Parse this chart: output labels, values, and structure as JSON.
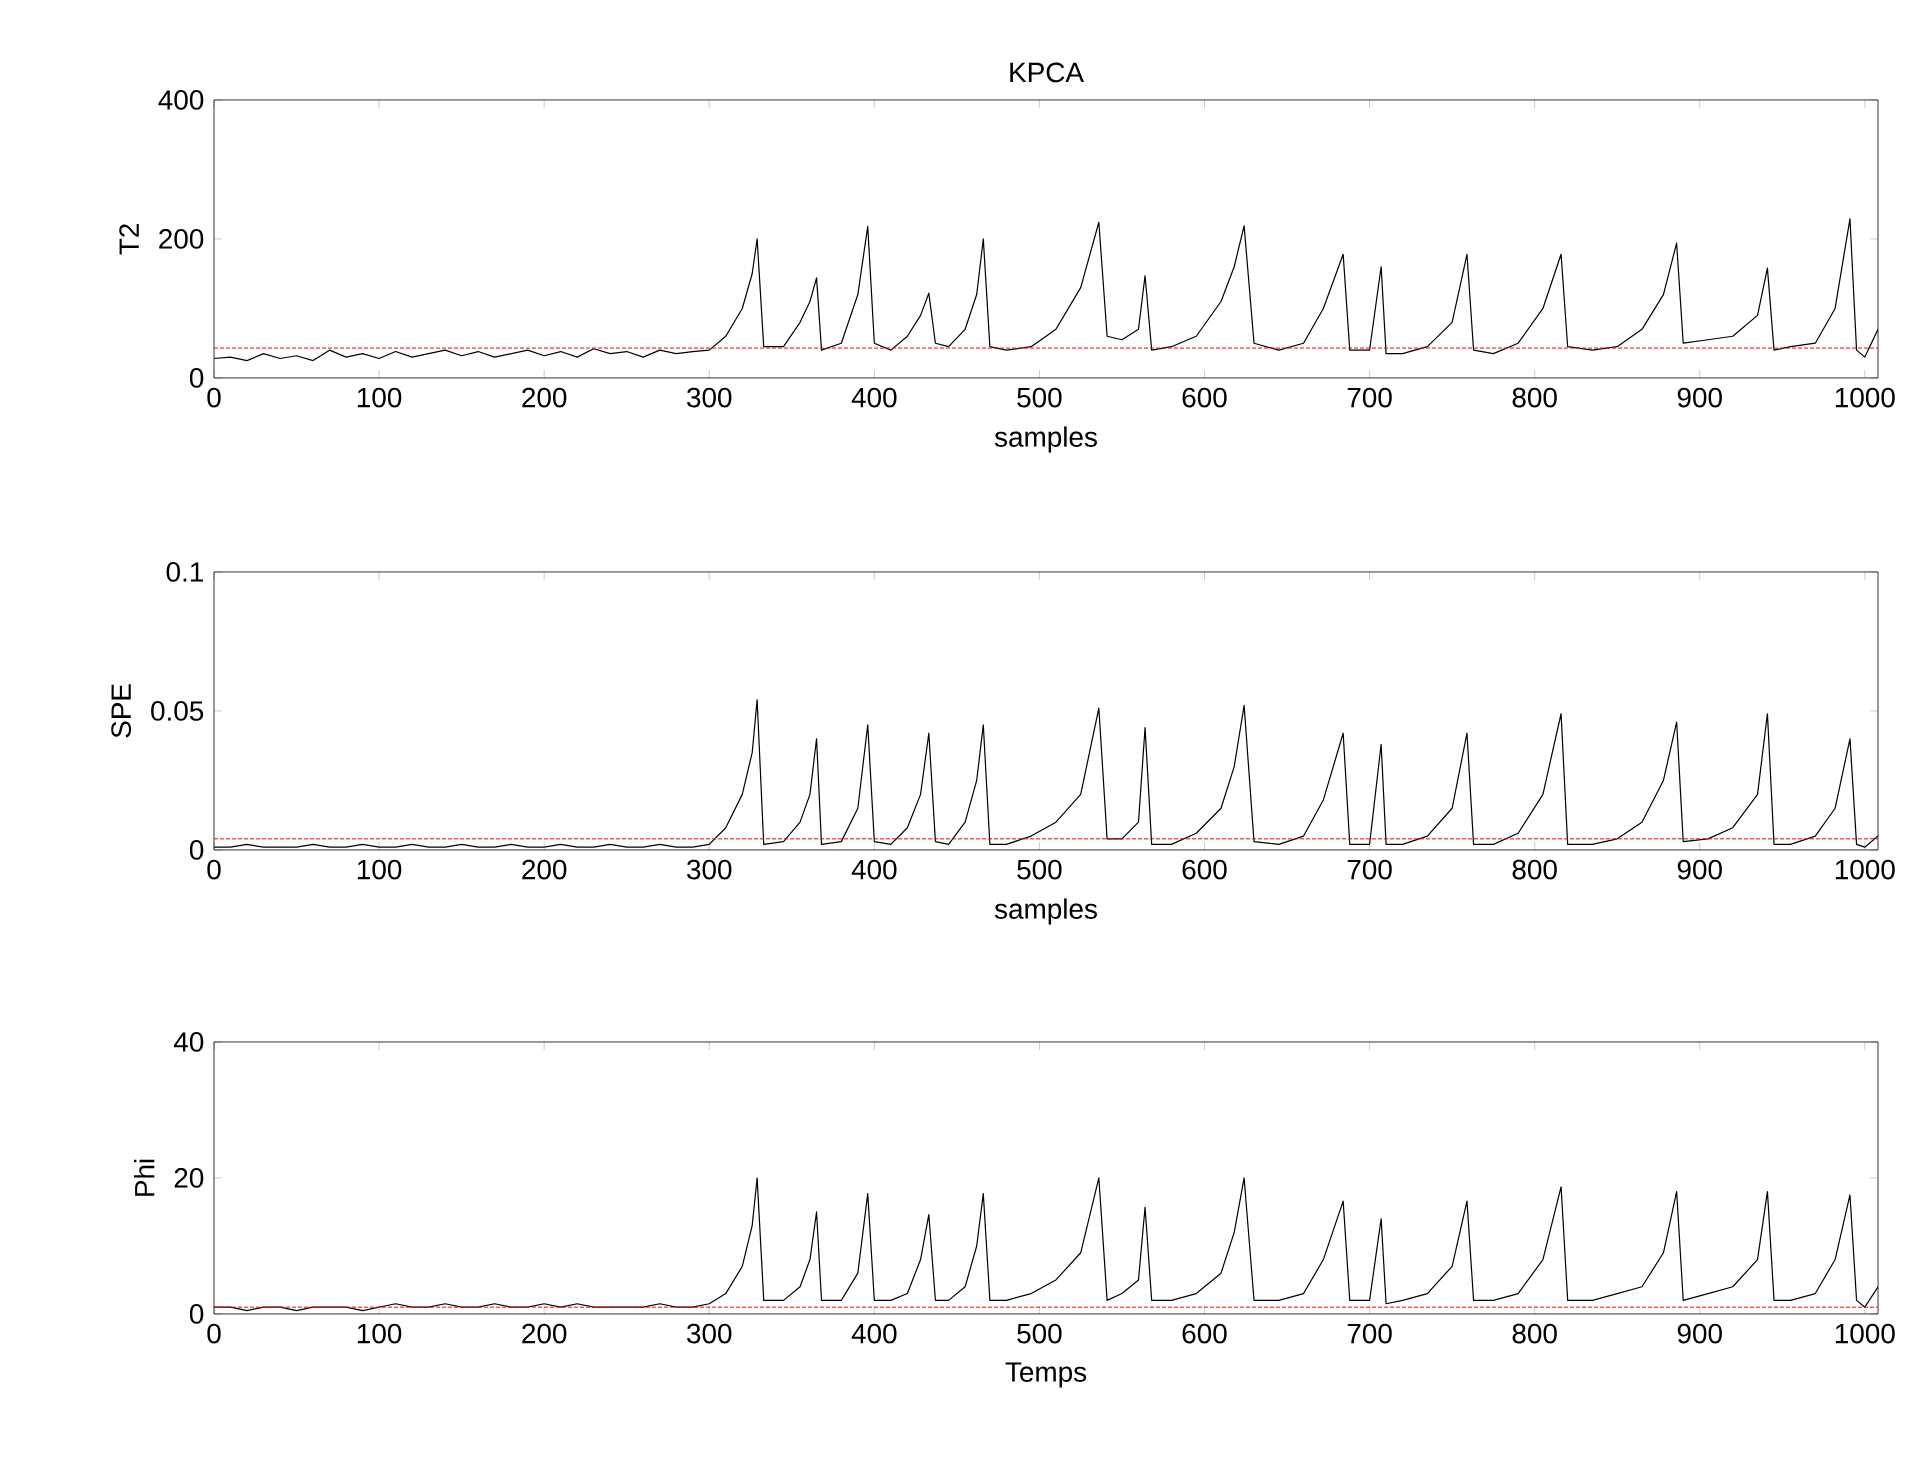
{
  "chart_data": [
    {
      "type": "line",
      "title": "KPCA",
      "xlabel": "samples",
      "ylabel": "T2",
      "xlim": [
        0,
        1008
      ],
      "xticks": [
        0,
        100,
        200,
        300,
        400,
        500,
        600,
        700,
        800,
        900,
        1000
      ],
      "ylim": [
        0,
        400
      ],
      "yticks": [
        0,
        200,
        400
      ],
      "ref_lines": [
        {
          "axis": "y",
          "value": 43,
          "color": "#ff0000",
          "line_style": "dashed"
        }
      ],
      "x": [
        0,
        10,
        20,
        30,
        40,
        50,
        60,
        70,
        80,
        90,
        100,
        110,
        120,
        130,
        140,
        150,
        160,
        170,
        180,
        190,
        200,
        210,
        220,
        230,
        240,
        250,
        260,
        270,
        280,
        290,
        300,
        310,
        320,
        326,
        329,
        333,
        345,
        355,
        361,
        365,
        368,
        380,
        390,
        396,
        400,
        410,
        420,
        428,
        433,
        437,
        445,
        455,
        462,
        466,
        470,
        480,
        495,
        510,
        525,
        536,
        541,
        550,
        560,
        564,
        568,
        580,
        595,
        610,
        618,
        624,
        630,
        645,
        660,
        672,
        684,
        688,
        700,
        707,
        710,
        720,
        735,
        750,
        759,
        763,
        775,
        790,
        805,
        816,
        820,
        835,
        850,
        865,
        878,
        886,
        890,
        905,
        920,
        935,
        941,
        945,
        955,
        970,
        982,
        991,
        995,
        1000,
        1008
      ],
      "series": [
        {
          "color": "#000000",
          "values": [
            28,
            30,
            25,
            35,
            28,
            32,
            25,
            40,
            30,
            35,
            28,
            38,
            30,
            35,
            40,
            32,
            38,
            30,
            35,
            40,
            32,
            38,
            30,
            42,
            35,
            38,
            30,
            40,
            35,
            38,
            40,
            60,
            100,
            150,
            200,
            45,
            45,
            80,
            110,
            144,
            40,
            50,
            120,
            218,
            50,
            40,
            60,
            90,
            122,
            50,
            45,
            70,
            120,
            200,
            45,
            40,
            45,
            70,
            130,
            224,
            60,
            55,
            70,
            147,
            40,
            45,
            60,
            110,
            160,
            219,
            50,
            40,
            50,
            100,
            178,
            40,
            40,
            160,
            35,
            35,
            45,
            80,
            178,
            40,
            35,
            50,
            100,
            178,
            45,
            40,
            45,
            70,
            120,
            194,
            50,
            55,
            60,
            90,
            158,
            40,
            45,
            50,
            100,
            229,
            40,
            30,
            70
          ]
        }
      ]
    },
    {
      "type": "line",
      "xlabel": "samples",
      "ylabel": "SPE",
      "xlim": [
        0,
        1008
      ],
      "xticks": [
        0,
        100,
        200,
        300,
        400,
        500,
        600,
        700,
        800,
        900,
        1000
      ],
      "ylim": [
        0,
        0.1
      ],
      "yticks": [
        0,
        0.05,
        0.1
      ],
      "ref_lines": [
        {
          "axis": "y",
          "value": 0.004,
          "color": "#ff0000",
          "line_style": "dashed"
        }
      ],
      "x": [
        0,
        10,
        20,
        30,
        40,
        50,
        60,
        70,
        80,
        90,
        100,
        110,
        120,
        130,
        140,
        150,
        160,
        170,
        180,
        190,
        200,
        210,
        220,
        230,
        240,
        250,
        260,
        270,
        280,
        290,
        300,
        310,
        320,
        326,
        329,
        333,
        345,
        355,
        361,
        365,
        368,
        380,
        390,
        396,
        400,
        410,
        420,
        428,
        433,
        437,
        445,
        455,
        462,
        466,
        470,
        480,
        495,
        510,
        525,
        536,
        541,
        550,
        560,
        564,
        568,
        580,
        595,
        610,
        618,
        624,
        630,
        645,
        660,
        672,
        684,
        688,
        700,
        707,
        710,
        720,
        735,
        750,
        759,
        763,
        775,
        790,
        805,
        816,
        820,
        835,
        850,
        865,
        878,
        886,
        890,
        905,
        920,
        935,
        941,
        945,
        955,
        970,
        982,
        991,
        995,
        1000,
        1008
      ],
      "series": [
        {
          "color": "#000000",
          "values": [
            0.001,
            0.001,
            0.002,
            0.001,
            0.001,
            0.001,
            0.002,
            0.001,
            0.001,
            0.002,
            0.001,
            0.001,
            0.002,
            0.001,
            0.001,
            0.002,
            0.001,
            0.001,
            0.002,
            0.001,
            0.001,
            0.002,
            0.001,
            0.001,
            0.002,
            0.001,
            0.001,
            0.002,
            0.001,
            0.001,
            0.002,
            0.008,
            0.02,
            0.035,
            0.054,
            0.002,
            0.003,
            0.01,
            0.02,
            0.04,
            0.002,
            0.003,
            0.015,
            0.045,
            0.003,
            0.002,
            0.008,
            0.02,
            0.042,
            0.003,
            0.002,
            0.01,
            0.025,
            0.045,
            0.002,
            0.002,
            0.005,
            0.01,
            0.02,
            0.051,
            0.004,
            0.004,
            0.01,
            0.044,
            0.002,
            0.002,
            0.006,
            0.015,
            0.03,
            0.052,
            0.003,
            0.002,
            0.005,
            0.018,
            0.042,
            0.002,
            0.002,
            0.038,
            0.002,
            0.002,
            0.005,
            0.015,
            0.042,
            0.002,
            0.002,
            0.006,
            0.02,
            0.049,
            0.002,
            0.002,
            0.004,
            0.01,
            0.025,
            0.046,
            0.003,
            0.004,
            0.008,
            0.02,
            0.049,
            0.002,
            0.002,
            0.005,
            0.015,
            0.04,
            0.002,
            0.001,
            0.005
          ]
        }
      ]
    },
    {
      "type": "line",
      "xlabel": "Temps",
      "ylabel": "Phi",
      "xlim": [
        0,
        1008
      ],
      "xticks": [
        0,
        100,
        200,
        300,
        400,
        500,
        600,
        700,
        800,
        900,
        1000
      ],
      "ylim": [
        0,
        40
      ],
      "yticks": [
        0,
        20,
        40
      ],
      "ref_lines": [
        {
          "axis": "y",
          "value": 1,
          "color": "#ff0000",
          "line_style": "dashed"
        }
      ],
      "x": [
        0,
        10,
        20,
        30,
        40,
        50,
        60,
        70,
        80,
        90,
        100,
        110,
        120,
        130,
        140,
        150,
        160,
        170,
        180,
        190,
        200,
        210,
        220,
        230,
        240,
        250,
        260,
        270,
        280,
        290,
        300,
        310,
        320,
        326,
        329,
        333,
        345,
        355,
        361,
        365,
        368,
        380,
        390,
        396,
        400,
        410,
        420,
        428,
        433,
        437,
        445,
        455,
        462,
        466,
        470,
        480,
        495,
        510,
        525,
        536,
        541,
        550,
        560,
        564,
        568,
        580,
        595,
        610,
        618,
        624,
        630,
        645,
        660,
        672,
        684,
        688,
        700,
        707,
        710,
        720,
        735,
        750,
        759,
        763,
        775,
        790,
        805,
        816,
        820,
        835,
        850,
        865,
        878,
        886,
        890,
        905,
        920,
        935,
        941,
        945,
        955,
        970,
        982,
        991,
        995,
        1000,
        1008
      ],
      "series": [
        {
          "color": "#000000",
          "values": [
            1,
            1,
            0.5,
            1,
            1,
            0.5,
            1,
            1,
            1,
            0.5,
            1,
            1.5,
            1,
            1,
            1.5,
            1,
            1,
            1.5,
            1,
            1,
            1.5,
            1,
            1.5,
            1,
            1,
            1,
            1,
            1.5,
            1,
            1,
            1.5,
            3,
            7,
            13,
            20,
            2,
            2,
            4,
            8,
            15,
            2,
            2,
            6,
            17.7,
            2,
            2,
            3,
            8,
            14.6,
            2,
            2,
            4,
            10,
            17.7,
            2,
            2,
            3,
            5,
            9,
            20,
            2,
            3,
            5,
            15.7,
            2,
            2,
            3,
            6,
            12,
            20,
            2,
            2,
            3,
            8,
            16.6,
            2,
            2,
            14,
            1.5,
            2,
            3,
            7,
            16.6,
            2,
            2,
            3,
            8,
            18.7,
            2,
            2,
            3,
            4,
            9,
            18,
            2,
            3,
            4,
            8,
            18,
            2,
            2,
            3,
            8,
            17.5,
            2,
            1,
            4
          ]
        }
      ]
    }
  ]
}
